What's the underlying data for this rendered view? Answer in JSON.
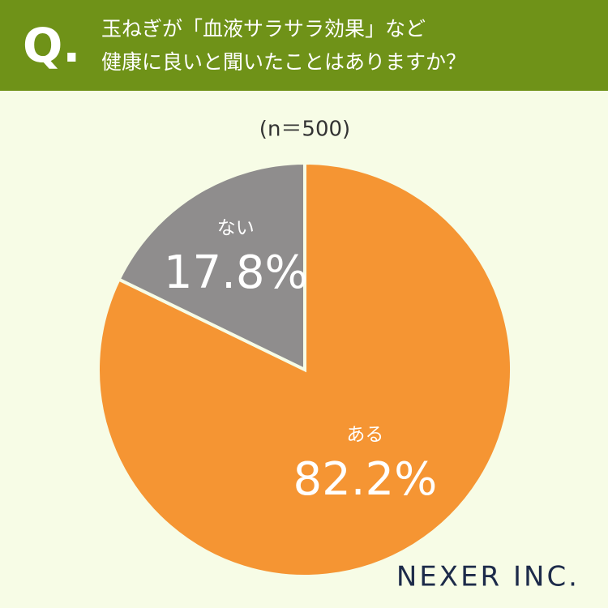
{
  "chart_data": {
    "type": "pie",
    "question_mark": "Q.",
    "title": [
      "玉ねぎが「血液サラサラ効果」など",
      "健康に良いと聞いたことはありますか？"
    ],
    "subtitle": "(n＝500)",
    "categories": [
      "ある",
      "ない"
    ],
    "values": [
      82.2,
      17.8
    ],
    "value_labels": [
      "82.2%",
      "17.8%"
    ],
    "colors": [
      "#f59533",
      "#8f8d8d"
    ],
    "brand": "NEXER INC."
  }
}
